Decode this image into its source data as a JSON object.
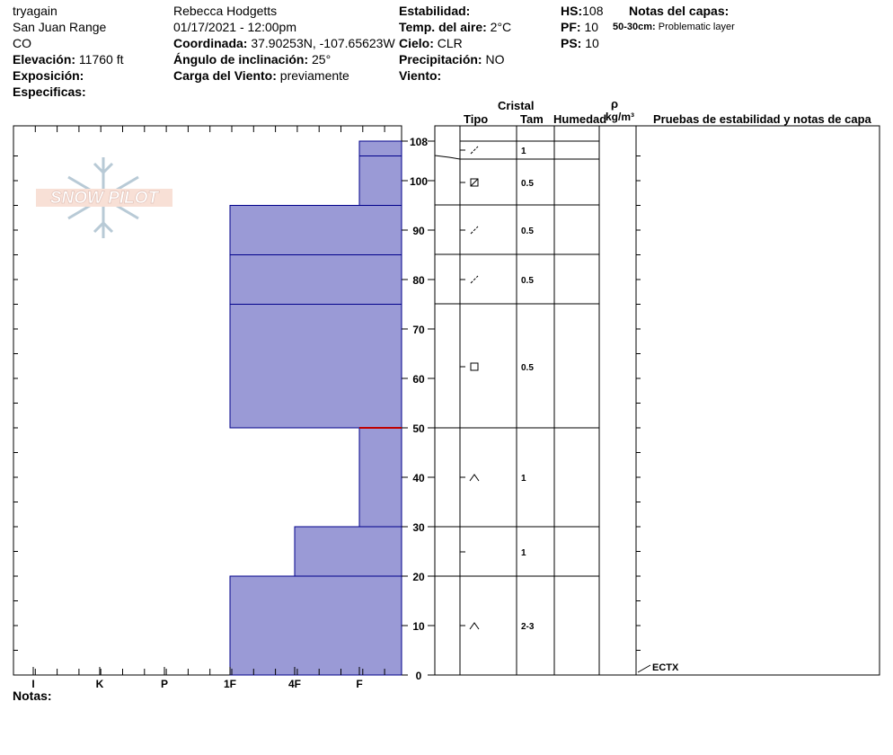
{
  "header": {
    "col1": {
      "user": "tryagain",
      "range": "San Juan Range",
      "state": "CO",
      "elevation_label": "Elevación:",
      "elevation_value": "11760 ft",
      "aspect_label": "Exposición:",
      "specifics_label": "Especificas:"
    },
    "col2": {
      "observer": "Rebecca Hodgetts",
      "datetime": "01/17/2021 - 12:00pm",
      "coord_label": "Coordinada:",
      "coord_value": "37.90253N, -107.65623W",
      "slope_label": "Ángulo de inclinación:",
      "slope_value": "25°",
      "wind_load_label": "Carga del Viento:",
      "wind_load_value": "previamente"
    },
    "col3": {
      "stability_label": "Estabilidad:",
      "air_temp_label": "Temp. del aire:",
      "air_temp_value": "2°C",
      "sky_label": "Cielo:",
      "sky_value": "CLR",
      "precip_label": "Precipitación:",
      "precip_value": "NO",
      "wind_label": "Viento:"
    },
    "col4": {
      "hs_label": "HS:",
      "hs_value": "108",
      "pf_label": "PF:",
      "pf_value": "10",
      "ps_label": "PS:",
      "ps_value": "10"
    },
    "layer_notes": {
      "title": "Notas del capas:",
      "range": "50-30cm:",
      "text": "Problematic layer"
    }
  },
  "logo": {
    "text": "SNOW PILOT"
  },
  "table_headers": {
    "crystal": "Cristal",
    "type": "Tipo",
    "size": "Tam",
    "moisture": "Humedad",
    "rho": "ρ",
    "density_unit": "kg/m³",
    "tests": "Pruebas de estabilidad y notas de capa"
  },
  "notes_label": "Notas:",
  "stability_test": "ECTX",
  "chart_data": {
    "type": "snow-profile",
    "x_categories": [
      "I",
      "K",
      "P",
      "1F",
      "4F",
      "F"
    ],
    "y_ticks": [
      0,
      10,
      20,
      30,
      40,
      50,
      60,
      70,
      80,
      90,
      100,
      108
    ],
    "ylim": [
      0,
      108
    ],
    "colors": {
      "fill": "#9a9ad6",
      "edge": "#00008b",
      "problem": "#c00000"
    },
    "layers": [
      {
        "top": 108,
        "bottom": 105,
        "hardness": "F",
        "grain": "decomp",
        "size": "1"
      },
      {
        "top": 105,
        "bottom": 95,
        "hardness": "F",
        "grain": "rounded",
        "size": "0.5"
      },
      {
        "top": 95,
        "bottom": 85,
        "hardness": "1F",
        "grain": "decomp",
        "size": "0.5"
      },
      {
        "top": 85,
        "bottom": 75,
        "hardness": "1F",
        "grain": "decomp",
        "size": "0.5"
      },
      {
        "top": 75,
        "bottom": 50,
        "hardness": "1F",
        "grain": "faceted",
        "size": "0.5"
      },
      {
        "top": 50,
        "bottom": 30,
        "hardness": "F",
        "grain": "depth-hoar",
        "size": "1"
      },
      {
        "top": 30,
        "bottom": 20,
        "hardness": "4F",
        "grain": "",
        "size": "1"
      },
      {
        "top": 20,
        "bottom": 0,
        "hardness": "1F",
        "grain": "depth-hoar",
        "size": "2-3"
      }
    ],
    "problem_layer_depth": 50,
    "test_depth": 0
  }
}
